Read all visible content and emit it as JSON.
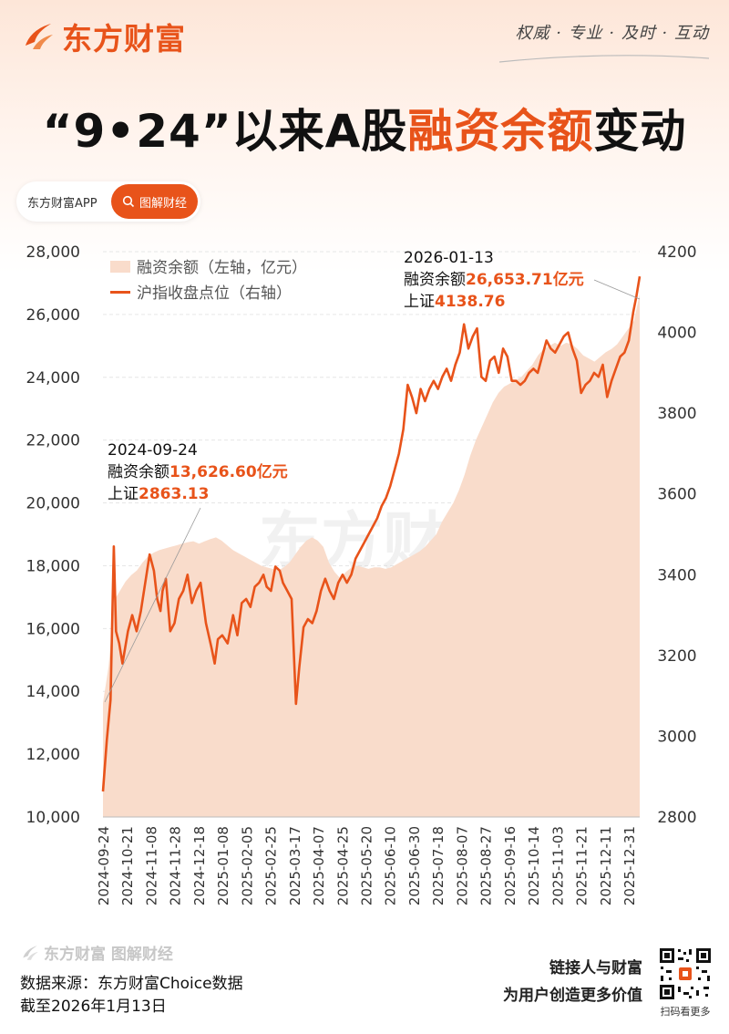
{
  "brand": {
    "name": "东方财富",
    "slogan": "权威 · 专业 · 及时 · 互动",
    "brand_color": "#e8531a"
  },
  "title": {
    "part1": "“9•24”以来A股",
    "highlight": "融资余额",
    "part2": "变动"
  },
  "pill": {
    "left": "东方财富APP",
    "right": "图解财经"
  },
  "footer": {
    "logo_text": "东方财富 图解财经",
    "source": "数据来源：东方财富Choice数据",
    "date": "截至2026年1月13日",
    "slogan_line1": "链接人与财富",
    "slogan_line2": "为用户创造更多价值",
    "qr_caption": "扫码看更多"
  },
  "chart_data": {
    "type": "area+line",
    "watermark": "东方财富",
    "left_axis": {
      "ylim": [
        10000,
        28000
      ],
      "ticks": [
        "10,000",
        "12,000",
        "14,000",
        "16,000",
        "18,000",
        "20,000",
        "22,000",
        "24,000",
        "26,000",
        "28,000"
      ]
    },
    "right_axis": {
      "ylim": [
        2800,
        4200
      ],
      "ticks": [
        "2800",
        "3000",
        "3200",
        "3400",
        "3600",
        "3800",
        "4000",
        "4200"
      ]
    },
    "x_ticks": [
      "2024-09-24",
      "2024-10-21",
      "2024-11-08",
      "2024-11-28",
      "2024-12-18",
      "2025-01-08",
      "2025-02-05",
      "2025-02-25",
      "2025-03-17",
      "2025-04-07",
      "2025-04-25",
      "2025-05-20",
      "2025-06-10",
      "2025-06-30",
      "2025-07-18",
      "2025-08-07",
      "2025-08-27",
      "2025-09-16",
      "2025-10-14",
      "2025-11-03",
      "2025-11-21",
      "2025-12-11",
      "2025-12-31"
    ],
    "legend": [
      {
        "name": "融资余额（左轴，亿元）",
        "color": "#f9dccb",
        "kind": "area"
      },
      {
        "name": "沪指收盘点位（右轴）",
        "color": "#e8531a",
        "kind": "line"
      }
    ],
    "margin_series": [
      [
        0,
        13626.6
      ],
      [
        1,
        14800
      ],
      [
        2,
        16900
      ],
      [
        3,
        17200
      ],
      [
        4,
        17500
      ],
      [
        5,
        17700
      ],
      [
        6,
        17850
      ],
      [
        7,
        18100
      ],
      [
        8,
        18300
      ],
      [
        9,
        18420
      ],
      [
        10,
        18500
      ],
      [
        11,
        18550
      ],
      [
        12,
        18600
      ],
      [
        13,
        18650
      ],
      [
        14,
        18700
      ],
      [
        15,
        18750
      ],
      [
        16,
        18780
      ],
      [
        17,
        18700
      ],
      [
        18,
        18780
      ],
      [
        19,
        18850
      ],
      [
        20,
        18900
      ],
      [
        21,
        18800
      ],
      [
        22,
        18650
      ],
      [
        23,
        18500
      ],
      [
        24,
        18400
      ],
      [
        25,
        18300
      ],
      [
        26,
        18200
      ],
      [
        27,
        18100
      ],
      [
        28,
        18000
      ],
      [
        29,
        17950
      ],
      [
        30,
        17900
      ],
      [
        31,
        17850
      ],
      [
        32,
        17950
      ],
      [
        33,
        18100
      ],
      [
        34,
        18350
      ],
      [
        35,
        18600
      ],
      [
        36,
        18800
      ],
      [
        37,
        18900
      ],
      [
        38,
        18800
      ],
      [
        39,
        18600
      ],
      [
        40,
        18100
      ],
      [
        41,
        17800
      ],
      [
        42,
        17600
      ],
      [
        43,
        17800
      ],
      [
        44,
        17950
      ],
      [
        45,
        18000
      ],
      [
        46,
        17950
      ],
      [
        47,
        17900
      ],
      [
        48,
        17950
      ],
      [
        49,
        17950
      ],
      [
        50,
        17900
      ],
      [
        51,
        17950
      ],
      [
        52,
        18050
      ],
      [
        53,
        18150
      ],
      [
        54,
        18250
      ],
      [
        55,
        18350
      ],
      [
        56,
        18450
      ],
      [
        57,
        18600
      ],
      [
        58,
        18800
      ],
      [
        59,
        19000
      ],
      [
        60,
        19400
      ],
      [
        61,
        19700
      ],
      [
        62,
        20000
      ],
      [
        63,
        20400
      ],
      [
        64,
        20900
      ],
      [
        65,
        21500
      ],
      [
        66,
        22000
      ],
      [
        67,
        22400
      ],
      [
        68,
        22800
      ],
      [
        69,
        23200
      ],
      [
        70,
        23500
      ],
      [
        71,
        23700
      ],
      [
        72,
        23800
      ],
      [
        73,
        23900
      ],
      [
        74,
        24000
      ],
      [
        75,
        24200
      ],
      [
        76,
        24400
      ],
      [
        77,
        24700
      ],
      [
        78,
        24900
      ],
      [
        79,
        25000
      ],
      [
        80,
        25100
      ],
      [
        81,
        25000
      ],
      [
        82,
        25100
      ],
      [
        83,
        25050
      ],
      [
        84,
        24900
      ],
      [
        85,
        24700
      ],
      [
        86,
        24600
      ],
      [
        87,
        24500
      ],
      [
        88,
        24650
      ],
      [
        89,
        24800
      ],
      [
        90,
        24900
      ],
      [
        91,
        25050
      ],
      [
        92,
        25300
      ],
      [
        93,
        25550
      ],
      [
        94,
        25800
      ],
      [
        95,
        26653.71
      ]
    ],
    "index_series": [
      [
        0,
        2863.13
      ],
      [
        0.35,
        2990
      ],
      [
        0.7,
        3090
      ],
      [
        1.0,
        3470
      ],
      [
        1.2,
        3260
      ],
      [
        1.5,
        3230
      ],
      [
        1.8,
        3180
      ],
      [
        2.3,
        3260
      ],
      [
        2.7,
        3300
      ],
      [
        3.1,
        3260
      ],
      [
        3.5,
        3310
      ],
      [
        3.9,
        3380
      ],
      [
        4.3,
        3450
      ],
      [
        4.7,
        3410
      ],
      [
        5.0,
        3340
      ],
      [
        5.3,
        3310
      ],
      [
        5.5,
        3360
      ],
      [
        5.8,
        3390
      ],
      [
        6.2,
        3260
      ],
      [
        6.6,
        3280
      ],
      [
        7.0,
        3340
      ],
      [
        7.4,
        3360
      ],
      [
        7.8,
        3400
      ],
      [
        8.2,
        3330
      ],
      [
        8.6,
        3360
      ],
      [
        9.0,
        3380
      ],
      [
        9.5,
        3280
      ],
      [
        10.0,
        3220
      ],
      [
        10.3,
        3180
      ],
      [
        10.6,
        3240
      ],
      [
        11.0,
        3250
      ],
      [
        11.5,
        3230
      ],
      [
        12.0,
        3300
      ],
      [
        12.4,
        3250
      ],
      [
        12.8,
        3330
      ],
      [
        13.2,
        3340
      ],
      [
        13.6,
        3320
      ],
      [
        14.0,
        3370
      ],
      [
        14.4,
        3380
      ],
      [
        14.8,
        3400
      ],
      [
        15.1,
        3370
      ],
      [
        15.5,
        3360
      ],
      [
        15.9,
        3420
      ],
      [
        16.3,
        3410
      ],
      [
        16.6,
        3380
      ],
      [
        17.0,
        3360
      ],
      [
        17.4,
        3340
      ],
      [
        17.8,
        3080
      ],
      [
        18.1,
        3170
      ],
      [
        18.5,
        3270
      ],
      [
        18.9,
        3290
      ],
      [
        19.3,
        3280
      ],
      [
        19.7,
        3310
      ],
      [
        20.1,
        3360
      ],
      [
        20.5,
        3390
      ],
      [
        20.9,
        3360
      ],
      [
        21.3,
        3340
      ],
      [
        21.7,
        3380
      ],
      [
        22.1,
        3400
      ],
      [
        22.5,
        3380
      ],
      [
        22.9,
        3400
      ],
      [
        23.3,
        3440
      ],
      [
        23.7,
        3460
      ],
      [
        24.1,
        3480
      ],
      [
        24.5,
        3500
      ],
      [
        24.9,
        3520
      ],
      [
        25.3,
        3540
      ],
      [
        25.7,
        3570
      ],
      [
        26.1,
        3590
      ],
      [
        26.5,
        3620
      ],
      [
        26.9,
        3660
      ],
      [
        27.3,
        3700
      ],
      [
        27.7,
        3760
      ],
      [
        28.1,
        3870
      ],
      [
        28.5,
        3840
      ],
      [
        28.9,
        3800
      ],
      [
        29.3,
        3860
      ],
      [
        29.7,
        3830
      ],
      [
        30.1,
        3860
      ],
      [
        30.5,
        3880
      ],
      [
        30.9,
        3860
      ],
      [
        31.3,
        3890
      ],
      [
        31.7,
        3910
      ],
      [
        32.1,
        3880
      ],
      [
        32.5,
        3920
      ],
      [
        32.9,
        3950
      ],
      [
        33.3,
        4020
      ],
      [
        33.7,
        3960
      ],
      [
        34.1,
        3990
      ],
      [
        34.5,
        4010
      ],
      [
        34.9,
        3890
      ],
      [
        35.3,
        3880
      ],
      [
        35.7,
        3930
      ],
      [
        36.1,
        3940
      ],
      [
        36.5,
        3900
      ],
      [
        36.9,
        3960
      ],
      [
        37.3,
        3940
      ],
      [
        37.7,
        3880
      ],
      [
        38.1,
        3880
      ],
      [
        38.5,
        3870
      ],
      [
        38.9,
        3880
      ],
      [
        39.3,
        3900
      ],
      [
        39.7,
        3910
      ],
      [
        40.1,
        3900
      ],
      [
        40.5,
        3940
      ],
      [
        40.9,
        3980
      ],
      [
        41.3,
        3960
      ],
      [
        41.7,
        3950
      ],
      [
        42.1,
        3970
      ],
      [
        42.5,
        3990
      ],
      [
        42.9,
        4000
      ],
      [
        43.3,
        3960
      ],
      [
        43.7,
        3930
      ],
      [
        44.1,
        3850
      ],
      [
        44.5,
        3870
      ],
      [
        44.9,
        3880
      ],
      [
        45.3,
        3900
      ],
      [
        45.7,
        3890
      ],
      [
        46.1,
        3920
      ],
      [
        46.5,
        3840
      ],
      [
        46.9,
        3880
      ],
      [
        47.3,
        3910
      ],
      [
        47.7,
        3940
      ],
      [
        48.1,
        3950
      ],
      [
        48.5,
        3980
      ],
      [
        48.9,
        4050
      ],
      [
        49.2,
        4090
      ],
      [
        49.5,
        4138.76
      ]
    ],
    "annotations": [
      {
        "date": "2024-09-24",
        "label": "融资余额",
        "value_text": "13,626.60亿元",
        "index_label": "上证",
        "index_value": "2863.13"
      },
      {
        "date": "2026-01-13",
        "label": "融资余额",
        "value_text": "26,653.71亿元",
        "index_label": "上证",
        "index_value": "4138.76"
      }
    ]
  }
}
